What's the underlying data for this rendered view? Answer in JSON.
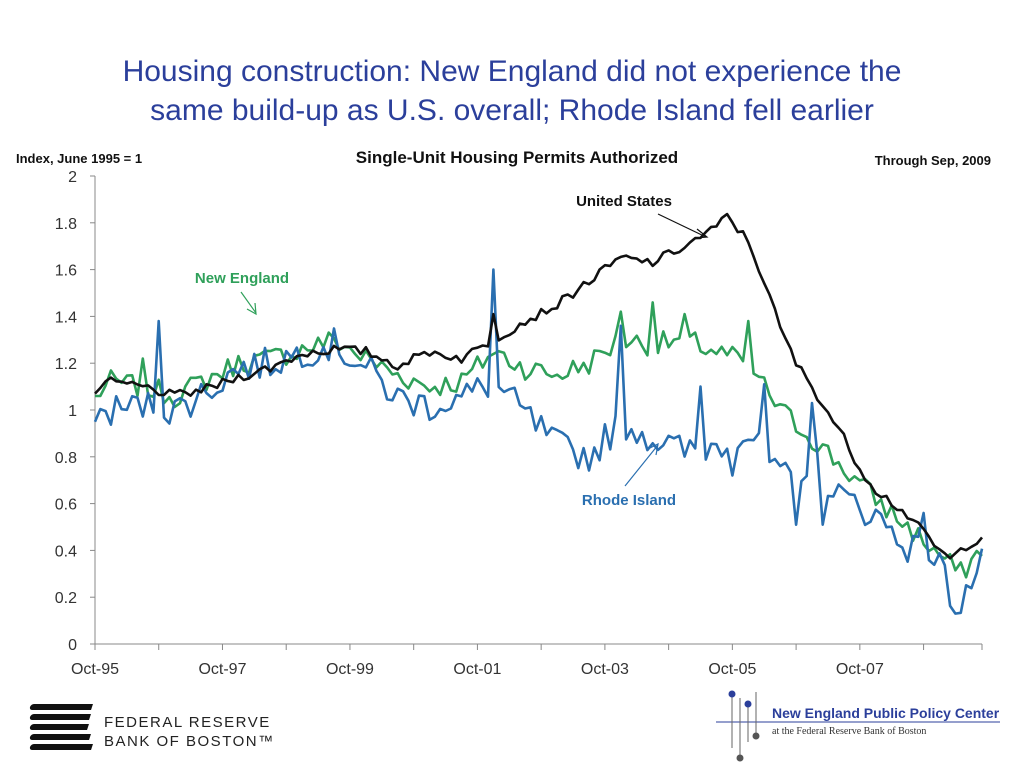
{
  "title": {
    "line1": "Housing construction: New England did not experience the",
    "line2": "same build-up as U.S. overall; Rhode Island fell earlier"
  },
  "chart_data": {
    "type": "line",
    "title": "Single-Unit Housing Permits Authorized",
    "ylabel": "Index, June 1995 = 1",
    "note": "Through Sep, 2009",
    "ylim": [
      0,
      2
    ],
    "yticks": [
      "0",
      "0.2",
      "0.4",
      "0.6",
      "0.8",
      "1",
      "1.2",
      "1.4",
      "1.6",
      "1.8",
      "2"
    ],
    "xticks": [
      "Oct-95",
      "Oct-97",
      "Oct-99",
      "Oct-01",
      "Oct-03",
      "Oct-05",
      "Oct-07"
    ],
    "x_start": "Oct-95",
    "x_end": "Sep-09",
    "frequency": "monthly",
    "series_keypoints": [
      {
        "name": "United States",
        "color": "#111111",
        "points": [
          [
            "Oct-95",
            1.07
          ],
          [
            "Jan-96",
            1.12
          ],
          [
            "Jul-96",
            1.1
          ],
          [
            "Jan-97",
            1.06
          ],
          [
            "Jul-97",
            1.09
          ],
          [
            "Jan-98",
            1.14
          ],
          [
            "Jul-98",
            1.18
          ],
          [
            "Jan-99",
            1.24
          ],
          [
            "Jul-99",
            1.26
          ],
          [
            "Jan-00",
            1.25
          ],
          [
            "Jul-00",
            1.19
          ],
          [
            "Jan-01",
            1.25
          ],
          [
            "Jul-01",
            1.22
          ],
          [
            "Oct-01",
            1.26
          ],
          [
            "Jan-02",
            1.3
          ],
          [
            "Jul-02",
            1.38
          ],
          [
            "Jan-03",
            1.45
          ],
          [
            "Jul-03",
            1.55
          ],
          [
            "Jan-04",
            1.65
          ],
          [
            "Jul-04",
            1.63
          ],
          [
            "Jan-05",
            1.7
          ],
          [
            "Jul-05",
            1.78
          ],
          [
            "Sep-05",
            1.83
          ],
          [
            "Jan-06",
            1.72
          ],
          [
            "Apr-06",
            1.55
          ],
          [
            "Jul-06",
            1.35
          ],
          [
            "Oct-06",
            1.2
          ],
          [
            "Jan-07",
            1.1
          ],
          [
            "Jul-07",
            0.88
          ],
          [
            "Oct-07",
            0.75
          ],
          [
            "Jan-08",
            0.66
          ],
          [
            "Jul-08",
            0.55
          ],
          [
            "Jan-09",
            0.4
          ],
          [
            "Mar-09",
            0.36
          ],
          [
            "Jun-09",
            0.42
          ],
          [
            "Sep-09",
            0.46
          ]
        ]
      },
      {
        "name": "New England",
        "color": "#2fa05a",
        "points": [
          [
            "Oct-95",
            1.06
          ],
          [
            "Jan-96",
            1.12
          ],
          [
            "Jul-96",
            1.1
          ],
          [
            "Jan-97",
            1.06
          ],
          [
            "Jul-97",
            1.13
          ],
          [
            "Jan-98",
            1.2
          ],
          [
            "Jul-98",
            1.22
          ],
          [
            "Jan-99",
            1.26
          ],
          [
            "Jul-99",
            1.3
          ],
          [
            "Jan-00",
            1.22
          ],
          [
            "Jul-00",
            1.15
          ],
          [
            "Jan-01",
            1.1
          ],
          [
            "Jul-01",
            1.12
          ],
          [
            "Jan-02",
            1.25
          ],
          [
            "Jul-02",
            1.18
          ],
          [
            "Jan-03",
            1.15
          ],
          [
            "Jul-03",
            1.2
          ],
          [
            "Jan-04",
            1.3
          ],
          [
            "Jul-04",
            1.28
          ],
          [
            "Jan-05",
            1.3
          ],
          [
            "Jul-05",
            1.25
          ],
          [
            "Jan-06",
            1.2
          ],
          [
            "Jul-06",
            1.0
          ],
          [
            "Jan-07",
            0.88
          ],
          [
            "Jul-07",
            0.75
          ],
          [
            "Jan-08",
            0.62
          ],
          [
            "Jul-08",
            0.5
          ],
          [
            "Jan-09",
            0.38
          ],
          [
            "May-09",
            0.3
          ],
          [
            "Sep-09",
            0.41
          ]
        ]
      },
      {
        "name": "Rhode Island",
        "color": "#2a6fb0",
        "points": [
          [
            "Oct-95",
            0.95
          ],
          [
            "Jan-96",
            1.0
          ],
          [
            "Jul-96",
            1.02
          ],
          [
            "Jan-97",
            1.0
          ],
          [
            "Jul-97",
            1.08
          ],
          [
            "Jan-98",
            1.18
          ],
          [
            "Jul-98",
            1.2
          ],
          [
            "Jan-99",
            1.25
          ],
          [
            "Jul-99",
            1.28
          ],
          [
            "Jan-00",
            1.18
          ],
          [
            "Jul-00",
            1.05
          ],
          [
            "Jan-01",
            1.02
          ],
          [
            "Jul-01",
            1.05
          ],
          [
            "Jan-02",
            1.12
          ],
          [
            "Jul-02",
            0.98
          ],
          [
            "Jan-03",
            0.85
          ],
          [
            "Jul-03",
            0.8
          ],
          [
            "Jan-04",
            0.95
          ],
          [
            "Jul-04",
            0.88
          ],
          [
            "Jan-05",
            0.82
          ],
          [
            "Jul-05",
            0.85
          ],
          [
            "Jan-06",
            0.9
          ],
          [
            "Jul-06",
            0.7
          ],
          [
            "Jan-07",
            0.78
          ],
          [
            "Jul-07",
            0.62
          ],
          [
            "Jan-08",
            0.55
          ],
          [
            "Jul-08",
            0.42
          ],
          [
            "Jan-09",
            0.35
          ],
          [
            "Apr-09",
            0.15
          ],
          [
            "Sep-09",
            0.34
          ]
        ]
      }
    ],
    "spikes": [
      {
        "series": "United States",
        "date": "Jan-02",
        "value": 1.41
      },
      {
        "series": "Rhode Island",
        "date": "Oct-96",
        "value": 1.38
      },
      {
        "series": "Rhode Island",
        "date": "Jan-02",
        "value": 1.6
      },
      {
        "series": "Rhode Island",
        "date": "Jan-04",
        "value": 1.36
      },
      {
        "series": "Rhode Island",
        "date": "Apr-05",
        "value": 1.1
      },
      {
        "series": "Rhode Island",
        "date": "Oct-05",
        "value": 0.72
      },
      {
        "series": "Rhode Island",
        "date": "Apr-06",
        "value": 1.11
      },
      {
        "series": "Rhode Island",
        "date": "Oct-06",
        "value": 0.51
      },
      {
        "series": "Rhode Island",
        "date": "Jan-07",
        "value": 1.03
      },
      {
        "series": "Rhode Island",
        "date": "Mar-07",
        "value": 0.51
      },
      {
        "series": "Rhode Island",
        "date": "Oct-08",
        "value": 0.56
      },
      {
        "series": "Rhode Island",
        "date": "Apr-09",
        "value": 0.13
      },
      {
        "series": "New England",
        "date": "Jul-96",
        "value": 1.22
      },
      {
        "series": "New England",
        "date": "Jan-04",
        "value": 1.42
      },
      {
        "series": "New England",
        "date": "Jul-04",
        "value": 1.46
      },
      {
        "series": "New England",
        "date": "Jan-05",
        "value": 1.41
      },
      {
        "series": "New England",
        "date": "Jan-06",
        "value": 1.38
      }
    ],
    "annotations": [
      {
        "text": "United States",
        "color": "#111111"
      },
      {
        "text": "New England",
        "color": "#2fa05a"
      },
      {
        "text": "Rhode Island",
        "color": "#2a6fb0"
      }
    ]
  },
  "footer": {
    "frb_line1": "FEDERAL RESERVE",
    "frb_line2": "BANK OF BOSTON™",
    "neppc_name": "New England Public Policy Center",
    "neppc_sub": "at the Federal Reserve Bank of Boston"
  }
}
